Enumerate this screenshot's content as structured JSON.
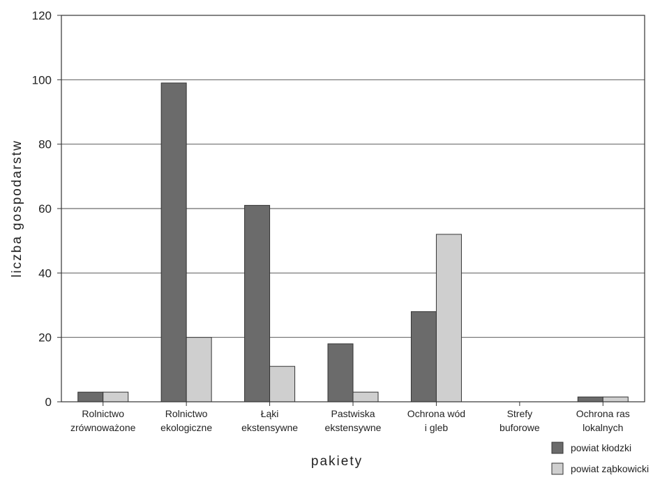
{
  "chart_data": {
    "type": "bar",
    "categories": [
      [
        "Rolnictwo",
        "zrównoważone"
      ],
      [
        "Rolnictwo",
        "ekologiczne"
      ],
      [
        "Łąki",
        "ekstensywne"
      ],
      [
        "Pastwiska",
        "ekstensywne"
      ],
      [
        "Ochrona wód",
        "i gleb"
      ],
      [
        "Strefy",
        "buforowe"
      ],
      [
        "Ochrona ras",
        "lokalnych"
      ]
    ],
    "series": [
      {
        "name": "powiat kłodzki",
        "color": "#6b6b6b",
        "values": [
          3,
          99,
          61,
          18,
          28,
          0,
          1.5
        ]
      },
      {
        "name": "powiat ząbkowicki",
        "color": "#cfcfcf",
        "values": [
          3,
          20,
          11,
          3,
          52,
          0,
          1.5
        ]
      }
    ],
    "xlabel": "pakiety",
    "ylabel": "liczba gospodarstw",
    "ylim": [
      0,
      120
    ],
    "yticks": [
      0,
      20,
      40,
      60,
      80,
      100,
      120
    ],
    "grid": true,
    "legend_position": "bottom-right"
  }
}
